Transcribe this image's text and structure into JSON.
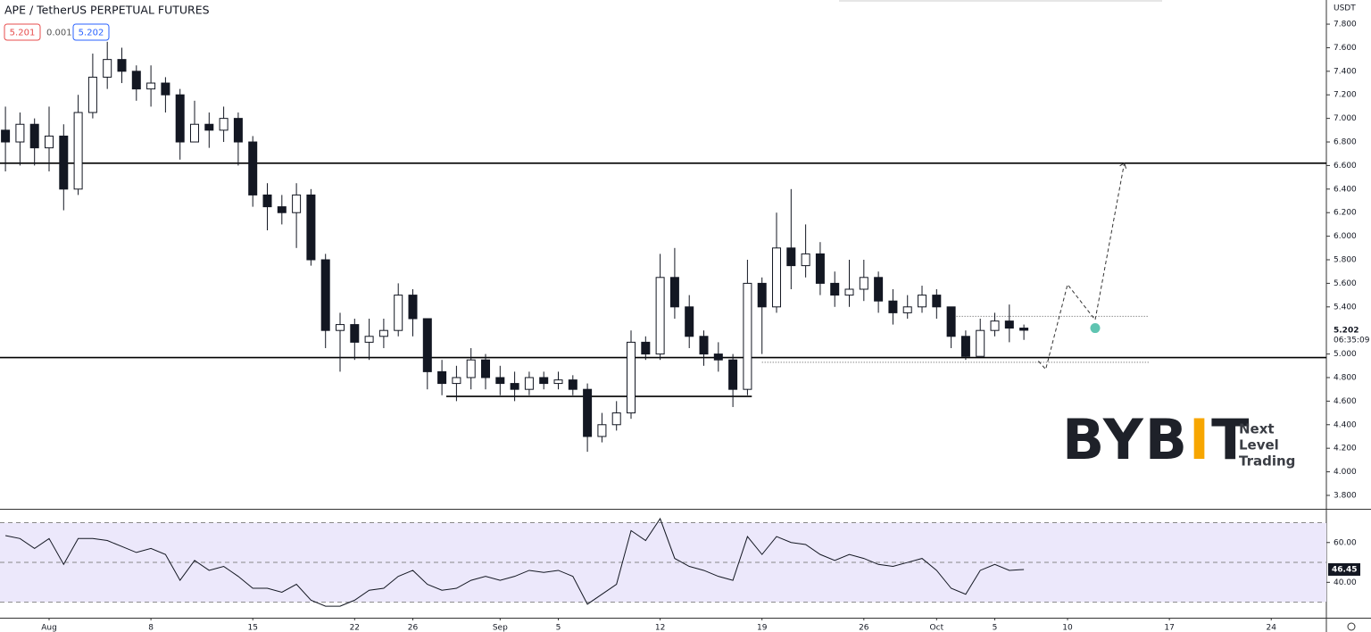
{
  "chart_data": {
    "type": "candlestick",
    "title": "APE / TetherUS PERPETUAL FUTURES",
    "bid": 5.201,
    "spread": 0.001,
    "ask": 5.202,
    "currency": "USDT",
    "countdown": "06:35:09",
    "x": [
      -3,
      -2,
      -1,
      0,
      1,
      2,
      3,
      4,
      5,
      6,
      7,
      8,
      9,
      10,
      11,
      12,
      13,
      14,
      15,
      16,
      17,
      18,
      19,
      20,
      21,
      22,
      23,
      24,
      25,
      26,
      27,
      28,
      29,
      30,
      31,
      32,
      33,
      34,
      35,
      36,
      37,
      38,
      39,
      40,
      41,
      42,
      43,
      44,
      45,
      46,
      47,
      48,
      49,
      50,
      51,
      52,
      53,
      54,
      55,
      56,
      57,
      58,
      59,
      60,
      61,
      62,
      63,
      64,
      65,
      66,
      67
    ],
    "open": [
      6.9,
      6.8,
      6.95,
      6.75,
      6.85,
      6.4,
      7.05,
      7.35,
      7.5,
      7.4,
      7.25,
      7.3,
      7.2,
      6.8,
      6.95,
      6.9,
      7.0,
      6.8,
      6.35,
      6.25,
      6.2,
      6.35,
      5.8,
      5.2,
      5.25,
      5.1,
      5.15,
      5.2,
      5.5,
      5.3,
      4.85,
      4.75,
      4.8,
      4.95,
      4.8,
      4.75,
      4.7,
      4.8,
      4.75,
      4.78,
      4.7,
      4.3,
      4.4,
      4.5,
      5.1,
      5.0,
      5.65,
      5.4,
      5.15,
      5.0,
      4.95,
      4.7,
      5.6,
      5.4,
      5.9,
      5.75,
      5.85,
      5.6,
      5.5,
      5.55,
      5.65,
      5.45,
      5.35,
      5.4,
      5.5,
      5.4,
      5.15,
      4.98,
      5.2,
      5.28,
      5.22
    ],
    "high": [
      7.1,
      7.05,
      7.0,
      7.1,
      6.95,
      7.2,
      7.55,
      7.65,
      7.6,
      7.45,
      7.45,
      7.35,
      7.25,
      7.15,
      7.05,
      7.1,
      7.05,
      6.85,
      6.45,
      6.35,
      6.45,
      6.4,
      5.85,
      5.35,
      5.3,
      5.3,
      5.3,
      5.6,
      5.55,
      5.3,
      4.95,
      4.9,
      5.05,
      5.0,
      4.9,
      4.85,
      4.85,
      4.85,
      4.85,
      4.82,
      4.75,
      4.5,
      4.6,
      5.2,
      5.15,
      5.85,
      5.9,
      5.5,
      5.2,
      5.1,
      5.0,
      5.8,
      5.65,
      6.2,
      6.4,
      6.1,
      5.95,
      5.7,
      5.8,
      5.8,
      5.7,
      5.55,
      5.5,
      5.58,
      5.55,
      5.4,
      5.2,
      5.3,
      5.35,
      5.42,
      5.25
    ],
    "low": [
      6.55,
      6.6,
      6.6,
      6.55,
      6.22,
      6.35,
      7.0,
      7.25,
      7.3,
      7.15,
      7.1,
      7.05,
      6.65,
      6.8,
      6.75,
      6.8,
      6.6,
      6.25,
      6.05,
      6.1,
      5.9,
      5.75,
      5.05,
      4.85,
      4.95,
      4.95,
      5.05,
      5.15,
      5.15,
      4.7,
      4.65,
      4.6,
      4.7,
      4.7,
      4.65,
      4.6,
      4.65,
      4.7,
      4.7,
      4.65,
      4.17,
      4.25,
      4.35,
      4.45,
      4.95,
      4.95,
      5.3,
      5.05,
      4.9,
      4.85,
      4.55,
      4.65,
      5.0,
      5.35,
      5.55,
      5.65,
      5.5,
      5.4,
      5.4,
      5.45,
      5.35,
      5.25,
      5.3,
      5.35,
      5.3,
      5.05,
      4.95,
      4.98,
      5.15,
      5.1,
      5.12
    ],
    "close": [
      6.8,
      6.95,
      6.75,
      6.85,
      6.4,
      7.05,
      7.35,
      7.5,
      7.4,
      7.25,
      7.3,
      7.2,
      6.8,
      6.95,
      6.9,
      7.0,
      6.8,
      6.35,
      6.25,
      6.2,
      6.35,
      5.8,
      5.2,
      5.25,
      5.1,
      5.15,
      5.2,
      5.5,
      5.3,
      4.85,
      4.75,
      4.8,
      4.95,
      4.8,
      4.75,
      4.7,
      4.8,
      4.75,
      4.78,
      4.7,
      4.3,
      4.4,
      4.5,
      5.1,
      5.0,
      5.65,
      5.4,
      5.15,
      5.0,
      4.95,
      4.7,
      5.6,
      5.4,
      5.9,
      5.75,
      5.85,
      5.6,
      5.5,
      5.55,
      5.65,
      5.45,
      5.35,
      5.4,
      5.5,
      5.4,
      5.15,
      4.98,
      5.2,
      5.28,
      5.22,
      5.202
    ],
    "up_color": "#ffffff",
    "down_color": "#131722",
    "xlim": [
      -3.374,
      87.79
    ],
    "xticks": [
      {
        "value": 0,
        "label": "Aug"
      },
      {
        "value": 7,
        "label": "8"
      },
      {
        "value": 14,
        "label": "15"
      },
      {
        "value": 21,
        "label": "22"
      },
      {
        "value": 25,
        "label": "26"
      },
      {
        "value": 31,
        "label": "Sep"
      },
      {
        "value": 35,
        "label": "5"
      },
      {
        "value": 42,
        "label": "12"
      },
      {
        "value": 49,
        "label": "19"
      },
      {
        "value": 56,
        "label": "26"
      },
      {
        "value": 61,
        "label": "Oct"
      },
      {
        "value": 65,
        "label": "5"
      },
      {
        "value": 70,
        "label": "10"
      },
      {
        "value": 77,
        "label": "17"
      },
      {
        "value": 84,
        "label": "24"
      }
    ],
    "ylim": [
      3.686,
      8.005
    ],
    "yticks": [
      {
        "value": 3.8,
        "label": "3.800"
      },
      {
        "value": 4.0,
        "label": "4.000"
      },
      {
        "value": 4.2,
        "label": "4.200"
      },
      {
        "value": 4.4,
        "label": "4.400"
      },
      {
        "value": 4.6,
        "label": "4.600"
      },
      {
        "value": 4.8,
        "label": "4.800"
      },
      {
        "value": 5.0,
        "label": "5.000"
      },
      {
        "value": 5.4,
        "label": "5.400"
      },
      {
        "value": 5.6,
        "label": "5.600"
      },
      {
        "value": 5.8,
        "label": "5.800"
      },
      {
        "value": 6.0,
        "label": "6.000"
      },
      {
        "value": 6.2,
        "label": "6.200"
      },
      {
        "value": 6.4,
        "label": "6.400"
      },
      {
        "value": 6.6,
        "label": "6.600"
      },
      {
        "value": 6.8,
        "label": "6.800"
      },
      {
        "value": 7.0,
        "label": "7.000"
      },
      {
        "value": 7.2,
        "label": "7.200"
      },
      {
        "value": 7.4,
        "label": "7.400"
      },
      {
        "value": 7.6,
        "label": "7.600"
      },
      {
        "value": 7.8,
        "label": "7.800"
      }
    ],
    "levels": [
      {
        "value": 6.62
      },
      {
        "value": 4.97
      },
      {
        "value": 4.64,
        "start": 27.3,
        "end": 48.3,
        "style": "solid"
      },
      {
        "value": 5.32,
        "start": 62,
        "end": 75.6,
        "style": "dotted"
      },
      {
        "value": 4.93,
        "start": 49,
        "end": 75.6,
        "style": "dotted"
      }
    ],
    "projection": {
      "x": [
        68,
        68.5,
        70,
        71.9,
        73.9
      ],
      "y": [
        4.94,
        4.87,
        5.59,
        5.29,
        6.62
      ]
    },
    "marker": {
      "x": 71.9,
      "y": 5.22,
      "color": "#5fc4b1"
    },
    "rsi": {
      "values": [
        63.5,
        62,
        57,
        62,
        49,
        62,
        62,
        61,
        58,
        55,
        57,
        54,
        41,
        51,
        46,
        48,
        43,
        37,
        37,
        35,
        39,
        31,
        28,
        28,
        31,
        36,
        37,
        43,
        46,
        39,
        36,
        37,
        41,
        43,
        41,
        43,
        46,
        45,
        46,
        43,
        29,
        34,
        39,
        66,
        61,
        72,
        52,
        48,
        46,
        43,
        41,
        63,
        54,
        63,
        60,
        59,
        54,
        51,
        54,
        52,
        49,
        48,
        50,
        52,
        46,
        37,
        34,
        46,
        49,
        46,
        46.45
      ],
      "color": "#131722",
      "band_color": "#ece8fb",
      "ylim": [
        22.2,
        76.5
      ],
      "yticks": [
        {
          "value": 60,
          "label": "60.00"
        },
        {
          "value": 40,
          "label": "40.00"
        }
      ],
      "bands": [
        70,
        50,
        30
      ]
    },
    "watermark": {
      "brand": "BYBIT",
      "accent": "#f7a600",
      "tagline": [
        "Next",
        "Level",
        "Trading"
      ]
    }
  }
}
